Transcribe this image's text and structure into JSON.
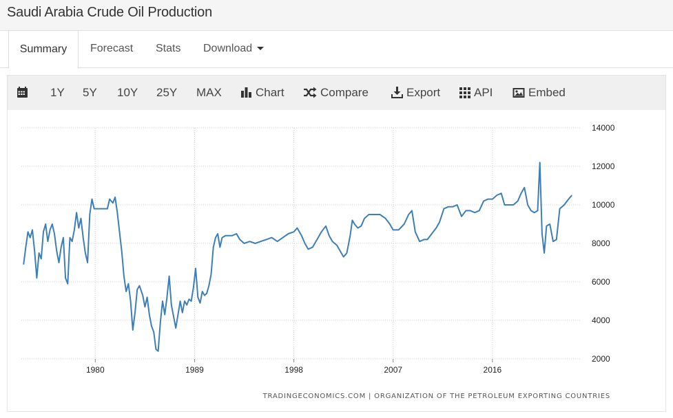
{
  "page_title": "Saudi Arabia Crude Oil Production",
  "tabs": [
    {
      "label": "Summary",
      "active": true
    },
    {
      "label": "Forecast",
      "active": false
    },
    {
      "label": "Stats",
      "active": false
    },
    {
      "label": "Download",
      "active": false
    }
  ],
  "toolbar": {
    "calendar_icon": "calendar-icon",
    "ranges": [
      "1Y",
      "5Y",
      "10Y",
      "25Y",
      "MAX"
    ],
    "chart_label": "Chart",
    "compare_label": "Compare",
    "export_label": "Export",
    "api_label": "API",
    "embed_label": "Embed"
  },
  "credit": "TRADINGECONOMICS.COM  |  ORGANIZATION OF THE PETROLEUM EXPORTING COUNTRIES",
  "colors": {
    "line": "#3d7eb6",
    "grid": "#cfcfcf",
    "toolbar_bg": "#f0f0f0"
  },
  "chart_data": {
    "type": "line",
    "title": "",
    "xlabel": "",
    "ylabel": "",
    "x_ticks": [
      "1980",
      "1989",
      "1998",
      "2007",
      "2016"
    ],
    "y_ticks": [
      2000,
      4000,
      6000,
      8000,
      10000,
      12000,
      14000
    ],
    "ylim": [
      2000,
      14000
    ],
    "xlim": [
      1973.3,
      2024.0
    ],
    "grid": true,
    "y_axis_side": "right",
    "series": [
      {
        "name": "",
        "points": [
          [
            1973.5,
            6900
          ],
          [
            1973.7,
            7800
          ],
          [
            1973.9,
            8600
          ],
          [
            1974.1,
            8300
          ],
          [
            1974.3,
            8700
          ],
          [
            1974.5,
            7600
          ],
          [
            1974.7,
            6200
          ],
          [
            1974.9,
            7500
          ],
          [
            1975.1,
            7200
          ],
          [
            1975.3,
            8600
          ],
          [
            1975.5,
            9000
          ],
          [
            1975.7,
            8100
          ],
          [
            1975.9,
            8700
          ],
          [
            1976.1,
            9000
          ],
          [
            1976.3,
            8500
          ],
          [
            1976.5,
            7600
          ],
          [
            1976.7,
            7000
          ],
          [
            1976.9,
            7800
          ],
          [
            1977.1,
            8300
          ],
          [
            1977.3,
            6200
          ],
          [
            1977.5,
            5900
          ],
          [
            1977.7,
            8300
          ],
          [
            1977.9,
            8100
          ],
          [
            1978.1,
            8700
          ],
          [
            1978.3,
            9600
          ],
          [
            1978.5,
            8800
          ],
          [
            1978.7,
            9300
          ],
          [
            1978.9,
            8300
          ],
          [
            1979.1,
            7500
          ],
          [
            1979.3,
            7000
          ],
          [
            1979.5,
            9500
          ],
          [
            1979.7,
            10300
          ],
          [
            1979.9,
            9800
          ],
          [
            1980.3,
            9800
          ],
          [
            1980.8,
            9800
          ],
          [
            1981.1,
            9800
          ],
          [
            1981.3,
            10300
          ],
          [
            1981.6,
            10100
          ],
          [
            1981.8,
            10400
          ],
          [
            1982.0,
            9600
          ],
          [
            1982.2,
            8600
          ],
          [
            1982.4,
            7600
          ],
          [
            1982.6,
            6300
          ],
          [
            1982.8,
            5500
          ],
          [
            1983.0,
            5900
          ],
          [
            1983.2,
            5000
          ],
          [
            1983.4,
            3500
          ],
          [
            1983.6,
            4400
          ],
          [
            1983.8,
            5600
          ],
          [
            1984.0,
            5800
          ],
          [
            1984.3,
            5300
          ],
          [
            1984.5,
            4700
          ],
          [
            1984.7,
            5200
          ],
          [
            1984.9,
            4300
          ],
          [
            1985.1,
            3700
          ],
          [
            1985.3,
            3400
          ],
          [
            1985.5,
            2500
          ],
          [
            1985.7,
            2400
          ],
          [
            1985.9,
            3900
          ],
          [
            1986.1,
            5000
          ],
          [
            1986.3,
            4300
          ],
          [
            1986.5,
            5200
          ],
          [
            1986.7,
            6300
          ],
          [
            1986.9,
            4800
          ],
          [
            1987.1,
            4200
          ],
          [
            1987.3,
            3600
          ],
          [
            1987.5,
            4300
          ],
          [
            1987.7,
            5000
          ],
          [
            1987.9,
            4400
          ],
          [
            1988.1,
            5000
          ],
          [
            1988.3,
            4800
          ],
          [
            1988.5,
            5100
          ],
          [
            1988.7,
            5000
          ],
          [
            1988.9,
            5700
          ],
          [
            1989.1,
            6700
          ],
          [
            1989.3,
            5200
          ],
          [
            1989.5,
            4900
          ],
          [
            1989.7,
            5500
          ],
          [
            1989.9,
            5300
          ],
          [
            1990.1,
            5400
          ],
          [
            1990.3,
            5800
          ],
          [
            1990.5,
            6400
          ],
          [
            1990.7,
            7800
          ],
          [
            1990.9,
            8300
          ],
          [
            1991.1,
            8500
          ],
          [
            1991.3,
            7800
          ],
          [
            1991.5,
            8300
          ],
          [
            1991.8,
            8400
          ],
          [
            1992.1,
            8400
          ],
          [
            1992.4,
            8400
          ],
          [
            1992.8,
            8500
          ],
          [
            1993.1,
            8200
          ],
          [
            1993.5,
            8000
          ],
          [
            1994.0,
            8100
          ],
          [
            1994.5,
            8000
          ],
          [
            1995.0,
            8100
          ],
          [
            1995.5,
            8200
          ],
          [
            1996.0,
            8300
          ],
          [
            1996.5,
            8100
          ],
          [
            1997.0,
            8300
          ],
          [
            1997.5,
            8500
          ],
          [
            1998.0,
            8600
          ],
          [
            1998.3,
            8800
          ],
          [
            1998.7,
            8400
          ],
          [
            1999.0,
            8000
          ],
          [
            1999.3,
            7700
          ],
          [
            1999.7,
            7800
          ],
          [
            2000.0,
            8100
          ],
          [
            2000.5,
            8600
          ],
          [
            2000.9,
            8900
          ],
          [
            2001.2,
            8400
          ],
          [
            2001.5,
            8100
          ],
          [
            2001.9,
            7900
          ],
          [
            2002.2,
            7600
          ],
          [
            2002.5,
            7300
          ],
          [
            2002.8,
            7500
          ],
          [
            2003.1,
            8400
          ],
          [
            2003.3,
            9200
          ],
          [
            2003.5,
            9000
          ],
          [
            2003.8,
            8800
          ],
          [
            2004.1,
            8900
          ],
          [
            2004.4,
            9300
          ],
          [
            2004.8,
            9500
          ],
          [
            2005.3,
            9500
          ],
          [
            2005.8,
            9500
          ],
          [
            2006.3,
            9300
          ],
          [
            2006.7,
            9000
          ],
          [
            2007.0,
            8700
          ],
          [
            2007.5,
            8700
          ],
          [
            2008.0,
            9000
          ],
          [
            2008.4,
            9500
          ],
          [
            2008.7,
            9700
          ],
          [
            2009.0,
            8600
          ],
          [
            2009.4,
            8100
          ],
          [
            2009.8,
            8200
          ],
          [
            2010.1,
            8200
          ],
          [
            2010.5,
            8500
          ],
          [
            2010.9,
            8800
          ],
          [
            2011.2,
            9100
          ],
          [
            2011.6,
            9800
          ],
          [
            2012.0,
            9900
          ],
          [
            2012.4,
            9900
          ],
          [
            2012.8,
            10000
          ],
          [
            2013.2,
            9400
          ],
          [
            2013.6,
            9700
          ],
          [
            2014.0,
            9700
          ],
          [
            2014.4,
            9600
          ],
          [
            2014.8,
            9700
          ],
          [
            2015.2,
            10200
          ],
          [
            2015.6,
            10300
          ],
          [
            2016.0,
            10300
          ],
          [
            2016.4,
            10500
          ],
          [
            2016.8,
            10600
          ],
          [
            2017.1,
            10000
          ],
          [
            2017.5,
            10000
          ],
          [
            2017.9,
            10000
          ],
          [
            2018.3,
            10200
          ],
          [
            2018.6,
            10600
          ],
          [
            2018.9,
            10900
          ],
          [
            2019.2,
            10000
          ],
          [
            2019.5,
            9700
          ],
          [
            2019.8,
            9600
          ],
          [
            2020.1,
            9700
          ],
          [
            2020.3,
            12200
          ],
          [
            2020.5,
            8500
          ],
          [
            2020.7,
            7500
          ],
          [
            2020.9,
            8900
          ],
          [
            2021.2,
            9000
          ],
          [
            2021.5,
            8100
          ],
          [
            2021.8,
            8200
          ],
          [
            2022.1,
            9800
          ],
          [
            2022.5,
            10000
          ],
          [
            2022.9,
            10300
          ],
          [
            2023.2,
            10500
          ]
        ]
      }
    ]
  }
}
